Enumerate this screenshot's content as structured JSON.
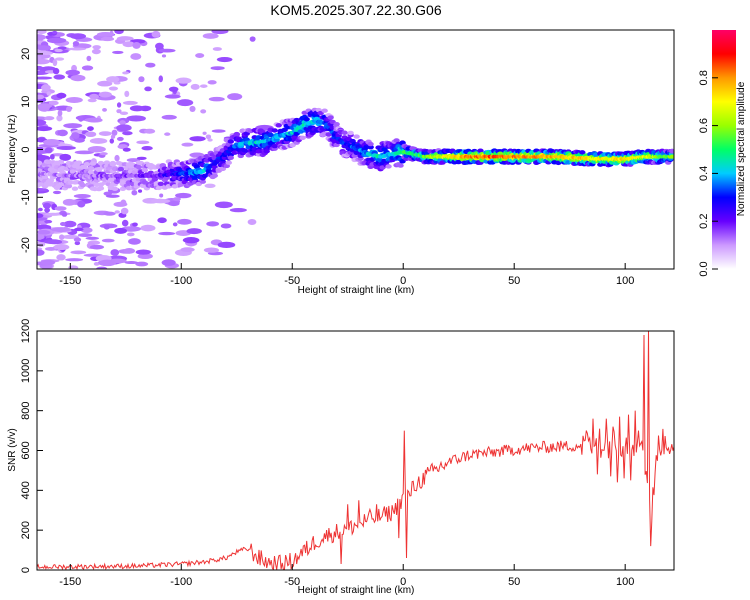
{
  "title": "KOM5.2025.307.22.30.G06",
  "chart_data": [
    {
      "type": "heatmap",
      "panel": "top",
      "xlabel": "Height of straight line (km)",
      "ylabel": "Frequency (Hz)",
      "xlim": [
        -165,
        122
      ],
      "ylim": [
        -25,
        25
      ],
      "x_ticks": [
        -150,
        -100,
        -50,
        0,
        50,
        100
      ],
      "y_ticks": [
        -20,
        -10,
        0,
        10,
        20
      ],
      "colorbar": {
        "label": "Normalized spectral amplitude",
        "range": [
          0,
          1
        ],
        "ticks": [
          "0.0",
          "0.2",
          "0.4",
          "0.6",
          "0.8"
        ],
        "tick_values": [
          0.0,
          0.2,
          0.4,
          0.6,
          0.8
        ],
        "colors": [
          "#ffffff",
          "#cc99ff",
          "#6600ff",
          "#0000ff",
          "#00ccff",
          "#00ff66",
          "#99ff00",
          "#ffff00",
          "#ff9900",
          "#ff0000",
          "#ff0066"
        ]
      },
      "ridge_frequency": {
        "x": [
          -165,
          -150,
          -130,
          -110,
          -100,
          -95,
          -90,
          -85,
          -80,
          -75,
          -70,
          -65,
          -60,
          -55,
          -50,
          -45,
          -40,
          -35,
          -30,
          -25,
          -20,
          -15,
          -10,
          -5,
          0,
          5,
          10,
          20,
          30,
          40,
          50,
          60,
          70,
          80,
          90,
          100,
          110,
          120
        ],
        "y": [
          -5,
          -5.5,
          -5.5,
          -5.5,
          -5,
          -5,
          -4.5,
          -3,
          -1,
          1,
          1.5,
          1.5,
          2,
          3,
          3.5,
          5,
          6,
          5.5,
          2.5,
          1,
          0,
          -1,
          -1.5,
          -1,
          -0.5,
          -1,
          -1.5,
          -1.5,
          -1.5,
          -1.5,
          -1.5,
          -1.5,
          -1.5,
          -1.8,
          -2,
          -2,
          -1.5,
          -1.5
        ],
        "amplitude": [
          0.1,
          0.12,
          0.15,
          0.2,
          0.3,
          0.35,
          0.42,
          0.3,
          0.28,
          0.35,
          0.4,
          0.42,
          0.4,
          0.38,
          0.4,
          0.45,
          0.42,
          0.35,
          0.3,
          0.3,
          0.35,
          0.4,
          0.45,
          0.4,
          0.5,
          0.5,
          0.55,
          0.7,
          0.8,
          0.85,
          0.82,
          0.8,
          0.78,
          0.75,
          0.7,
          0.72,
          0.65,
          0.55
        ]
      }
    },
    {
      "type": "line",
      "panel": "bottom",
      "xlabel": "Height of straight line (km)",
      "ylabel": "SNR (v/v)",
      "xlim": [
        -165,
        122
      ],
      "ylim": [
        0,
        1200
      ],
      "x_ticks": [
        -150,
        -100,
        -50,
        0,
        50,
        100
      ],
      "y_ticks": [
        0,
        200,
        400,
        600,
        800,
        1000,
        1200
      ],
      "color": "#ee3333",
      "envelope": {
        "x": [
          -165,
          -120,
          -100,
          -90,
          -80,
          -75,
          -70,
          -65,
          -60,
          -55,
          -50,
          -45,
          -40,
          -35,
          -30,
          -25,
          -20,
          -15,
          -10,
          -5,
          -2,
          0,
          2,
          5,
          10,
          15,
          20,
          25,
          30,
          40,
          50,
          60,
          70,
          80,
          90,
          100,
          105,
          108,
          110,
          112,
          115,
          122
        ],
        "y": [
          15,
          20,
          30,
          40,
          60,
          90,
          110,
          60,
          35,
          30,
          45,
          90,
          140,
          170,
          190,
          210,
          230,
          260,
          270,
          290,
          330,
          360,
          370,
          420,
          470,
          505,
          540,
          560,
          580,
          590,
          605,
          615,
          620,
          625,
          630,
          635,
          640,
          650,
          420,
          300,
          640,
          640
        ]
      },
      "spikes": [
        {
          "x": 0.5,
          "y": 700
        },
        {
          "x": 1.5,
          "y": 60
        },
        {
          "x": -12,
          "y": 330
        },
        {
          "x": -20,
          "y": 350
        },
        {
          "x": -25,
          "y": 330
        },
        {
          "x": -28,
          "y": 30
        },
        {
          "x": -2,
          "y": 160
        },
        {
          "x": 108.5,
          "y": 1180
        },
        {
          "x": 110.5,
          "y": 1200
        },
        {
          "x": 111.5,
          "y": 120
        },
        {
          "x": 104.5,
          "y": 800
        },
        {
          "x": 101.5,
          "y": 780
        },
        {
          "x": 97.5,
          "y": 770
        },
        {
          "x": 94.5,
          "y": 720
        },
        {
          "x": 91.5,
          "y": 760
        },
        {
          "x": 88.5,
          "y": 710
        },
        {
          "x": 85.5,
          "y": 760
        },
        {
          "x": 82.5,
          "y": 700
        },
        {
          "x": 99.5,
          "y": 460
        },
        {
          "x": 93.5,
          "y": 470
        },
        {
          "x": 87.5,
          "y": 480
        },
        {
          "x": 102.5,
          "y": 450
        },
        {
          "x": 96.5,
          "y": 440
        }
      ]
    }
  ]
}
